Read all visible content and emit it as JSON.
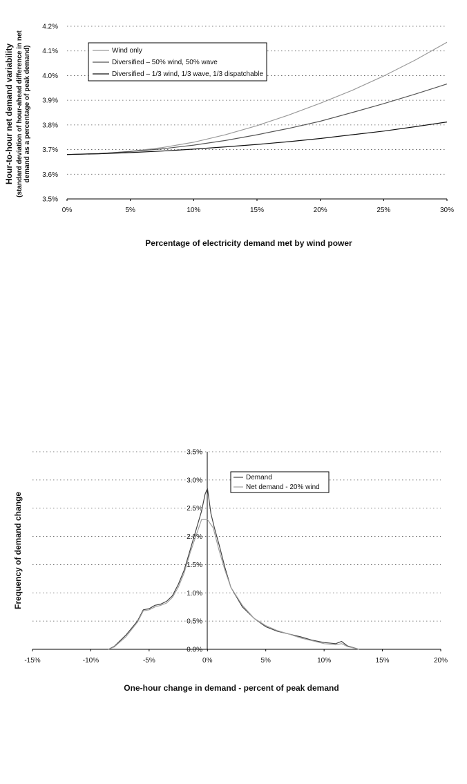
{
  "chart_data": [
    {
      "type": "line",
      "title": "",
      "xlabel": "Percentage of electricity demand met by wind power",
      "ylabel": "Hour-to-hour net demand variability",
      "ylabel_sub1": "(standard deviation of hour-ahead difference in net",
      "ylabel_sub2": "demand as a percentage of peak demand)",
      "xlim": [
        0,
        30
      ],
      "ylim": [
        3.5,
        4.2
      ],
      "x_ticks": [
        "0%",
        "5%",
        "10%",
        "15%",
        "20%",
        "25%",
        "30%"
      ],
      "y_ticks": [
        "3.5%",
        "3.6%",
        "3.7%",
        "3.8%",
        "3.9%",
        "4.0%",
        "4.1%",
        "4.2%"
      ],
      "grid": "horizontal dotted",
      "legend_position": "top-left",
      "x": [
        0,
        2.5,
        5,
        7.5,
        10,
        12.5,
        15,
        17.5,
        20,
        22.5,
        25,
        27.5,
        30
      ],
      "series": [
        {
          "name": "Wind only",
          "color": "#9a9a9a",
          "values": [
            3.68,
            3.683,
            3.693,
            3.708,
            3.73,
            3.76,
            3.797,
            3.84,
            3.888,
            3.94,
            3.998,
            4.063,
            4.135
          ]
        },
        {
          "name": "Diversified – 50% wind, 50% wave",
          "color": "#555555",
          "values": [
            3.68,
            3.684,
            3.692,
            3.703,
            3.718,
            3.737,
            3.76,
            3.786,
            3.815,
            3.85,
            3.886,
            3.925,
            3.966
          ]
        },
        {
          "name": "Diversified – 1/3 wind, 1/3 wave, 1/3 dispatchable",
          "color": "#111111",
          "values": [
            3.68,
            3.683,
            3.688,
            3.694,
            3.702,
            3.711,
            3.721,
            3.732,
            3.745,
            3.76,
            3.775,
            3.793,
            3.812
          ]
        }
      ]
    },
    {
      "type": "line",
      "title": "",
      "xlabel": "One-hour change in demand - percent of peak demand",
      "ylabel": "Frequency of demand change",
      "xlim": [
        -15,
        20
      ],
      "ylim": [
        0,
        3.5
      ],
      "x_ticks": [
        "-15%",
        "-10%",
        "-5%",
        "0%",
        "5%",
        "10%",
        "15%",
        "20%"
      ],
      "y_ticks": [
        "0.0%",
        "0.5%",
        "1.0%",
        "1.5%",
        "2.0%",
        "2.5%",
        "3.0%",
        "3.5%"
      ],
      "grid": "horizontal dotted",
      "legend_position": "top-right",
      "series": [
        {
          "name": "Demand",
          "color": "#444444",
          "x": [
            -8.5,
            -8,
            -7,
            -6,
            -5.5,
            -5,
            -4.5,
            -4,
            -3.5,
            -3,
            -2.5,
            -2,
            -1.5,
            -1,
            -0.5,
            -0.2,
            0,
            0.3,
            0.6,
            1,
            1.5,
            2,
            3,
            4,
            5,
            6,
            7,
            8,
            9,
            10,
            11,
            11.5,
            12,
            13
          ],
          "values": [
            0,
            0.05,
            0.25,
            0.5,
            0.7,
            0.72,
            0.78,
            0.8,
            0.85,
            0.95,
            1.15,
            1.4,
            1.75,
            2.1,
            2.45,
            2.75,
            2.85,
            2.4,
            2.15,
            1.85,
            1.45,
            1.1,
            0.75,
            0.55,
            0.4,
            0.32,
            0.27,
            0.22,
            0.16,
            0.12,
            0.1,
            0.14,
            0.06,
            0
          ]
        },
        {
          "name": "Net demand - 20% wind",
          "color": "#a0a0a0",
          "x": [
            -8.5,
            -8,
            -7,
            -6,
            -5.5,
            -5,
            -4.5,
            -4,
            -3.5,
            -3,
            -2.5,
            -2,
            -1.5,
            -1,
            -0.5,
            0,
            0.5,
            1,
            1.5,
            2,
            3,
            4,
            5,
            6,
            7,
            8,
            9,
            10,
            11,
            11.5,
            12,
            13
          ],
          "values": [
            0,
            0.04,
            0.22,
            0.48,
            0.68,
            0.7,
            0.75,
            0.78,
            0.82,
            0.92,
            1.1,
            1.35,
            1.7,
            2.0,
            2.3,
            2.3,
            2.15,
            1.75,
            1.4,
            1.1,
            0.78,
            0.55,
            0.42,
            0.33,
            0.27,
            0.2,
            0.15,
            0.1,
            0.08,
            0.1,
            0.05,
            0
          ]
        }
      ]
    }
  ]
}
